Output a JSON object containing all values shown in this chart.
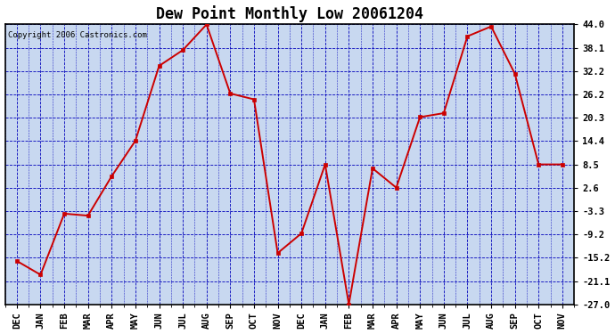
{
  "title": "Dew Point Monthly Low 20061204",
  "copyright": "Copyright 2006 Castronics.com",
  "x_labels": [
    "DEC",
    "JAN",
    "FEB",
    "MAR",
    "APR",
    "MAY",
    "JUN",
    "JUL",
    "AUG",
    "SEP",
    "OCT",
    "NOV",
    "DEC",
    "JAN",
    "FEB",
    "MAR",
    "APR",
    "MAY",
    "JUN",
    "JUL",
    "AUG",
    "SEP",
    "OCT",
    "NOV"
  ],
  "y_values": [
    -16.0,
    -19.5,
    -4.0,
    -4.5,
    5.5,
    14.5,
    33.5,
    37.5,
    44.0,
    26.5,
    25.0,
    -14.0,
    -9.0,
    8.5,
    -27.0,
    7.5,
    2.6,
    20.5,
    21.5,
    41.0,
    43.5,
    31.5,
    8.5,
    8.5
  ],
  "y_ticks": [
    44.0,
    38.1,
    32.2,
    26.2,
    20.3,
    14.4,
    8.5,
    2.6,
    -3.3,
    -9.2,
    -15.2,
    -21.1,
    -27.0
  ],
  "line_color": "#cc0000",
  "marker_color": "#cc0000",
  "bg_color": "#c8d8f0",
  "grid_color": "#0000bb",
  "border_color": "#000000",
  "title_fontsize": 12,
  "label_fontsize": 7.5,
  "copyright_fontsize": 6.5
}
